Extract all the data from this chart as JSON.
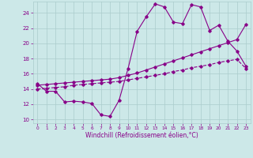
{
  "xlabel": "Windchill (Refroidissement éolien,°C)",
  "background_color": "#cce8e8",
  "grid_color": "#aacccc",
  "line_color": "#880088",
  "x_ticks": [
    0,
    1,
    2,
    3,
    4,
    5,
    6,
    7,
    8,
    9,
    10,
    11,
    12,
    13,
    14,
    15,
    16,
    17,
    18,
    19,
    20,
    21,
    22,
    23
  ],
  "y_ticks": [
    10,
    12,
    14,
    16,
    18,
    20,
    22,
    24
  ],
  "ylim": [
    9.5,
    25.5
  ],
  "xlim": [
    -0.5,
    23.5
  ],
  "series1_x": [
    0,
    1,
    2,
    3,
    4,
    5,
    6,
    7,
    8,
    9,
    10,
    11,
    12,
    13,
    14,
    15,
    16,
    17,
    18,
    19,
    20,
    21,
    22,
    23
  ],
  "series1_y": [
    14.7,
    13.7,
    13.7,
    12.3,
    12.4,
    12.3,
    12.1,
    10.6,
    10.4,
    12.5,
    16.7,
    21.6,
    23.5,
    25.2,
    24.8,
    22.8,
    22.6,
    25.1,
    24.8,
    21.7,
    22.4,
    20.3,
    19.0,
    17.0
  ],
  "series2_x": [
    0,
    1,
    2,
    3,
    4,
    5,
    6,
    7,
    8,
    9,
    10,
    11,
    12,
    13,
    14,
    15,
    16,
    17,
    18,
    19,
    20,
    21,
    22,
    23
  ],
  "series2_y": [
    14.0,
    14.1,
    14.2,
    14.3,
    14.5,
    14.6,
    14.7,
    14.8,
    14.9,
    15.0,
    15.2,
    15.4,
    15.6,
    15.8,
    16.0,
    16.3,
    16.5,
    16.8,
    17.0,
    17.2,
    17.5,
    17.7,
    17.9,
    16.7
  ],
  "series3_x": [
    0,
    1,
    2,
    3,
    4,
    5,
    6,
    7,
    8,
    9,
    10,
    11,
    12,
    13,
    14,
    15,
    16,
    17,
    18,
    19,
    20,
    21,
    22,
    23
  ],
  "series3_y": [
    14.5,
    14.6,
    14.7,
    14.8,
    14.9,
    15.0,
    15.1,
    15.2,
    15.3,
    15.5,
    15.8,
    16.1,
    16.5,
    16.9,
    17.3,
    17.7,
    18.1,
    18.5,
    18.9,
    19.3,
    19.7,
    20.1,
    20.5,
    22.5
  ],
  "xlabel_fontsize": 5.5,
  "tick_fontsize": 5,
  "lw": 0.8,
  "ms": 1.8
}
